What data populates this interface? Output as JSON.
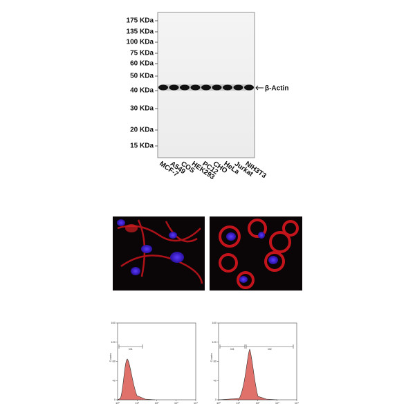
{
  "western_blot": {
    "markers": [
      "175 KDa",
      "135 KDa",
      "100 KDa",
      "75 KDa",
      "60 KDa",
      "50 KDa",
      "40 KDa",
      "30 KDa",
      "20 KDa",
      "15 KDa"
    ],
    "band_label": "β-Actin",
    "lanes": [
      "MCF-7",
      "A549",
      "COS",
      "HEK293",
      "PC12",
      "CHO",
      "HeLa",
      "Jurkat",
      "NIH3T3"
    ]
  },
  "flow_plots": [
    {
      "y_label": "Counts",
      "y_ticks": [
        "0",
        "40",
        "80",
        "120",
        "160"
      ],
      "x_ticks": [
        "10⁰",
        "10¹",
        "10²",
        "10³",
        "10⁴"
      ],
      "gates": [
        "M1"
      ]
    },
    {
      "y_label": "Counts",
      "y_ticks": [
        "0",
        "40",
        "80",
        "120",
        "160"
      ],
      "x_ticks": [
        "10⁰",
        "10¹",
        "10²",
        "10³",
        "10⁴"
      ],
      "gates": [
        "M1",
        "M2"
      ]
    }
  ]
}
